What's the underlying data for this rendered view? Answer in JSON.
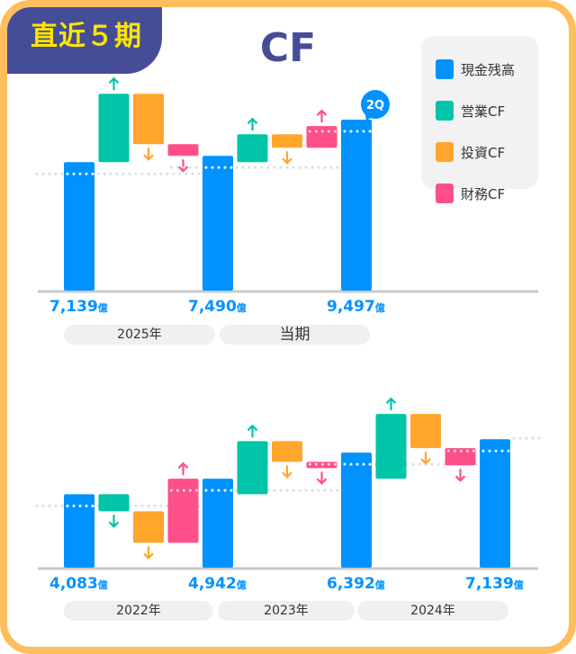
{
  "badge": "直近５期",
  "title": "CF",
  "legend": [
    {
      "label": "現金残高",
      "color": "#0092FF"
    },
    {
      "label": "営業CF",
      "color": "#00C5A8"
    },
    {
      "label": "投資CF",
      "color": "#FFA62B"
    },
    {
      "label": "財務CF",
      "color": "#FF4F8B"
    }
  ],
  "unit": "億",
  "chart_data": [
    {
      "type": "waterfall",
      "title": "CF",
      "balances": [
        {
          "label": "7,139",
          "value": 7139
        },
        {
          "label": "7,490",
          "value": 7490
        },
        {
          "label": "9,497",
          "value": 9497,
          "badge": "2Q"
        }
      ],
      "periods": [
        {
          "label": "2025年",
          "operating": 3800,
          "investing": -2800,
          "financing": -649
        },
        {
          "label": "当期",
          "operating": 1550,
          "investing": -750,
          "financing": 1207
        }
      ]
    },
    {
      "type": "waterfall",
      "balances": [
        {
          "label": "4,083",
          "value": 4083
        },
        {
          "label": "4,942",
          "value": 4942
        },
        {
          "label": "6,392",
          "value": 6392
        },
        {
          "label": "7,139",
          "value": 7139
        }
      ],
      "periods": [
        {
          "label": "2022年",
          "operating": -950,
          "investing": -1750,
          "financing": 3559
        },
        {
          "label": "2023年",
          "operating": 2950,
          "investing": -1150,
          "financing": -350
        },
        {
          "label": "2024年",
          "operating": 3600,
          "investing": -1900,
          "financing": -953
        }
      ]
    }
  ]
}
